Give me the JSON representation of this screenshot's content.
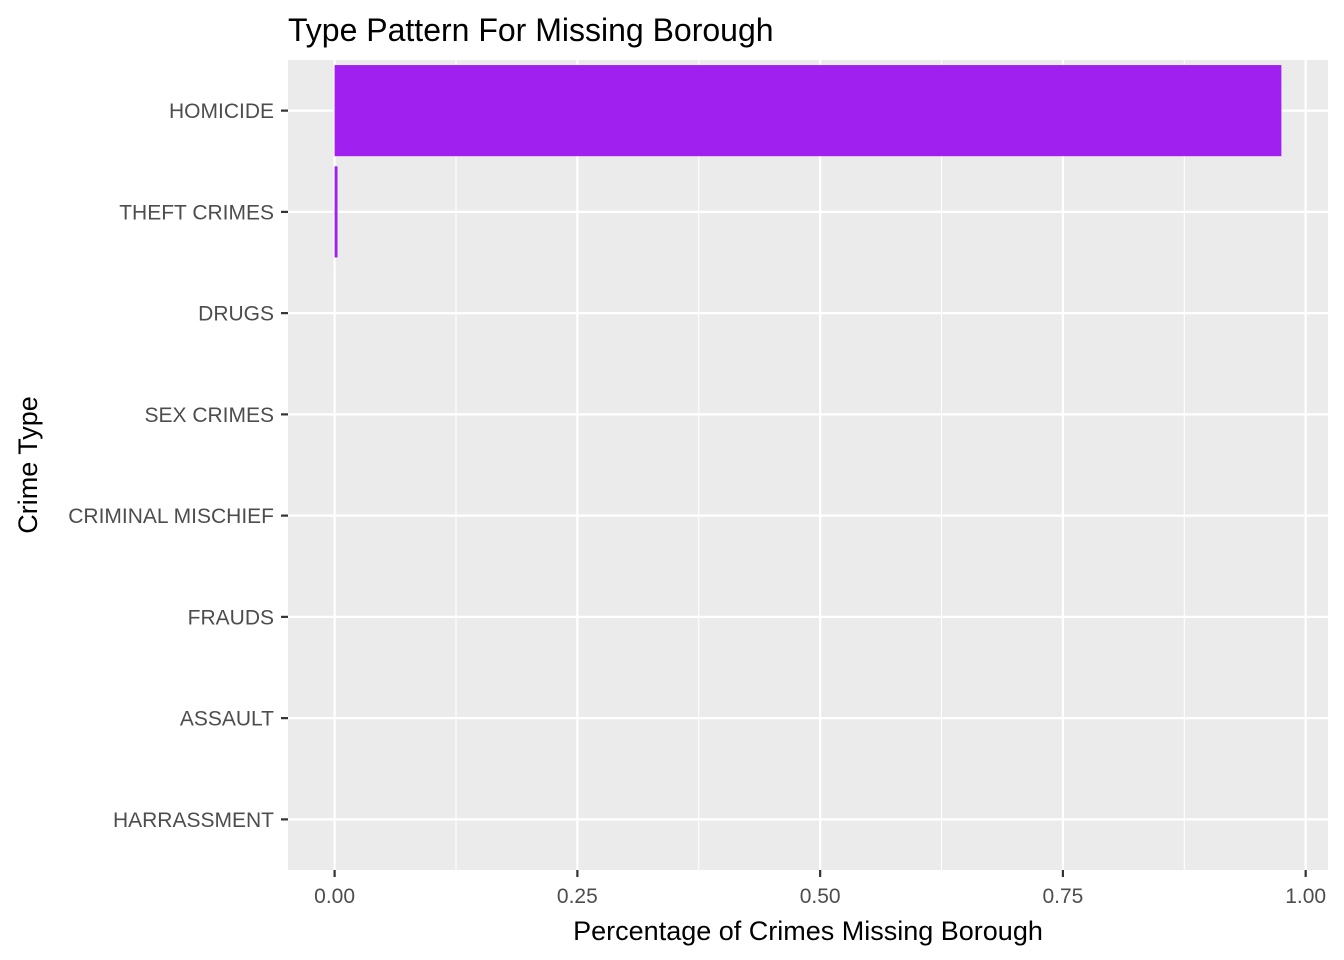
{
  "chart_data": {
    "type": "bar",
    "orientation": "horizontal",
    "title": "Type Pattern For Missing Borough",
    "xlabel": "Percentage of Crimes Missing Borough",
    "ylabel": "Crime Type",
    "categories": [
      "HOMICIDE",
      "THEFT CRIMES",
      "DRUGS",
      "SEX CRIMES",
      "CRIMINAL MISCHIEF",
      "FRAUDS",
      "ASSAULT",
      "HARRASSMENT"
    ],
    "values": [
      0.975,
      0.003,
      0,
      0,
      0,
      0,
      0,
      0
    ],
    "xlim": [
      -0.048,
      1.023
    ],
    "x_ticks": [
      0,
      0.25,
      0.5,
      0.75,
      1
    ],
    "x_tick_labels": [
      "0.00",
      "0.25",
      "0.50",
      "0.75",
      "1.00"
    ],
    "grid": true,
    "bar_color": "#A020F0",
    "panel_background": "#EBEBEB",
    "grid_color": "#FFFFFF"
  }
}
